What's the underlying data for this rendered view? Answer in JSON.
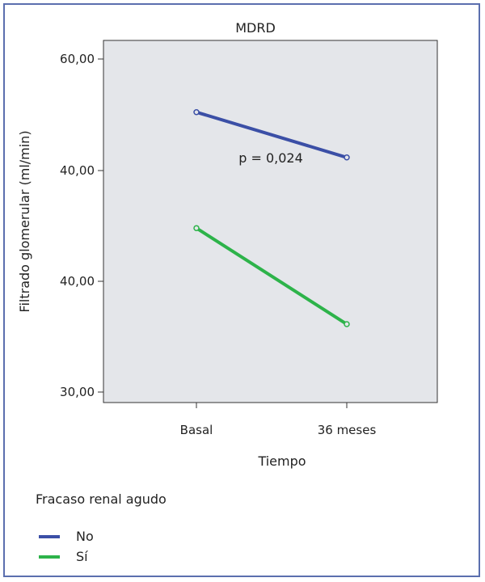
{
  "chart_data": {
    "type": "line",
    "title": "MDRD",
    "xlabel": "Tiempo",
    "ylabel": "Filtrado glomerular (ml/min)",
    "categories": [
      "Basal",
      "36 meses"
    ],
    "y_tick_labels": [
      "60,00",
      "40,00",
      "40,00",
      "30,00"
    ],
    "annotation": "p = 0,024",
    "legend_title": "Fracaso renal agudo",
    "legend_position": "bottom-left",
    "grid": false,
    "series": [
      {
        "name": "No",
        "color": "#3b4fa6",
        "values": [
          55.8,
          51.7
        ]
      },
      {
        "name": "Sí",
        "color": "#2db34a",
        "values": [
          45.3,
          36.6
        ]
      }
    ],
    "ylim": [
      29.5,
      62.3
    ]
  }
}
